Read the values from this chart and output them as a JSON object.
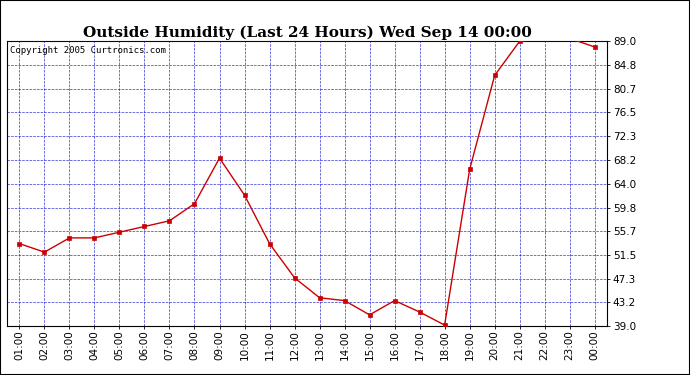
{
  "title": "Outside Humidity (Last 24 Hours) Wed Sep 14 00:00",
  "copyright": "Copyright 2005 Curtronics.com",
  "x_labels": [
    "01:00",
    "02:00",
    "03:00",
    "04:00",
    "05:00",
    "06:00",
    "07:00",
    "08:00",
    "09:00",
    "10:00",
    "11:00",
    "12:00",
    "13:00",
    "14:00",
    "15:00",
    "16:00",
    "17:00",
    "18:00",
    "19:00",
    "20:00",
    "21:00",
    "22:00",
    "23:00",
    "00:00"
  ],
  "y_ticks": [
    39.0,
    43.2,
    47.3,
    51.5,
    55.7,
    59.8,
    64.0,
    68.2,
    72.3,
    76.5,
    80.7,
    84.8,
    89.0
  ],
  "ylim": [
    39.0,
    89.0
  ],
  "data_x": [
    1,
    2,
    3,
    4,
    5,
    6,
    7,
    8,
    9,
    10,
    11,
    12,
    13,
    14,
    15,
    16,
    17,
    18,
    19,
    20,
    21,
    22,
    23,
    24
  ],
  "data_y": [
    53.5,
    52.0,
    54.5,
    54.5,
    55.5,
    56.5,
    57.5,
    60.5,
    68.5,
    62.0,
    53.5,
    47.5,
    44.0,
    43.5,
    41.0,
    43.5,
    41.5,
    39.2,
    66.5,
    83.0,
    89.0,
    89.5,
    89.5,
    88.0
  ],
  "line_color": "#cc0000",
  "marker_color": "#cc0000",
  "bg_color": "#ffffff",
  "plot_bg_color": "#ffffff",
  "grid_color": "#0000cc",
  "title_fontsize": 11,
  "copyright_fontsize": 6.5,
  "tick_fontsize": 7.5,
  "outer_border_color": "#000000"
}
